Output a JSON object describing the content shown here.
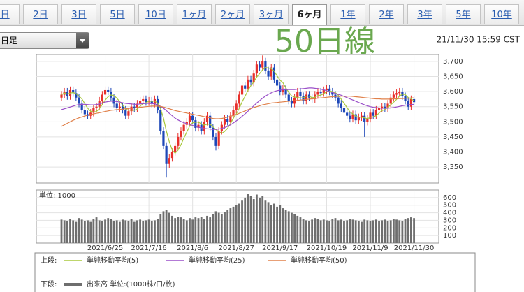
{
  "tabs": [
    "1日",
    "2日",
    "3日",
    "5日",
    "10日",
    "1ヶ月",
    "2ヶ月",
    "3ヶ月",
    "6ヶ月",
    "1年",
    "2年",
    "3年",
    "5年",
    "10年"
  ],
  "active_tab": 8,
  "dropdown": "日足",
  "timestamp": "21/11/30 15:59 CST",
  "annotation": "50日線",
  "chart_data": [
    {
      "type": "candlestick",
      "legend_label": "上段:",
      "categories": [
        null,
        null,
        null,
        null,
        null,
        null,
        null,
        null,
        null,
        null,
        null,
        null,
        null,
        null,
        null,
        "2021/6/25",
        null,
        null,
        null,
        null,
        null,
        null,
        null,
        null,
        null,
        null,
        null,
        null,
        null,
        null,
        "2021/7/16",
        null,
        null,
        null,
        null,
        null,
        null,
        null,
        null,
        null,
        null,
        null,
        null,
        null,
        null,
        "2021/8/6",
        null,
        null,
        null,
        null,
        null,
        null,
        null,
        null,
        null,
        null,
        null,
        null,
        null,
        null,
        "2021/8/27",
        null,
        null,
        null,
        null,
        null,
        null,
        null,
        null,
        null,
        null,
        null,
        null,
        null,
        null,
        "2021/9/17",
        null,
        null,
        null,
        null,
        null,
        null,
        null,
        null,
        null,
        null,
        null,
        null,
        null,
        null,
        null,
        "2021/10/19",
        null,
        null,
        null,
        null,
        null,
        null,
        null,
        null,
        null,
        null,
        null,
        null,
        null,
        null,
        "2021/11/9",
        null,
        null,
        null,
        null,
        null,
        null,
        null,
        null,
        null,
        null,
        null,
        null,
        null,
        null,
        "2021/11/30"
      ],
      "open": [
        3580,
        3590,
        3600,
        3585,
        3605,
        3595,
        3580,
        3560,
        3540,
        3525,
        3520,
        3530,
        3545,
        3550,
        3570,
        3590,
        3605,
        3600,
        3580,
        3560,
        3545,
        3550,
        3540,
        3520,
        3535,
        3550,
        3545,
        3560,
        3570,
        3575,
        3565,
        3570,
        3560,
        3575,
        3540,
        3470,
        3420,
        3360,
        3380,
        3400,
        3420,
        3450,
        3470,
        3490,
        3500,
        3520,
        3505,
        3480,
        3490,
        3470,
        3500,
        3520,
        3480,
        3450,
        3420,
        3470,
        3490,
        3510,
        3500,
        3520,
        3540,
        3560,
        3590,
        3620,
        3610,
        3640,
        3630,
        3660,
        3690,
        3680,
        3700,
        3670,
        3650,
        3680,
        3640,
        3620,
        3600,
        3610,
        3590,
        3570,
        3560,
        3580,
        3600,
        3585,
        3570,
        3590,
        3580,
        3575,
        3590,
        3600,
        3595,
        3605,
        3610,
        3600,
        3590,
        3580,
        3560,
        3545,
        3530,
        3520,
        3510,
        3525,
        3505,
        3515,
        3520,
        3500,
        3510,
        3530,
        3520,
        3540,
        3545,
        3550,
        3545,
        3560,
        3580,
        3590,
        3595,
        3600,
        3585,
        3570,
        3550,
        3575
      ],
      "high": [
        3602,
        3612,
        3612,
        3617,
        3617,
        3607,
        3592,
        3572,
        3552,
        3537,
        3542,
        3557,
        3562,
        3582,
        3602,
        3617,
        3617,
        3612,
        3592,
        3572,
        3562,
        3562,
        3552,
        3547,
        3562,
        3562,
        3572,
        3582,
        3587,
        3587,
        3582,
        3582,
        3587,
        3587,
        3552,
        3482,
        3432,
        3392,
        3412,
        3432,
        3462,
        3482,
        3502,
        3512,
        3532,
        3532,
        3517,
        3502,
        3502,
        3512,
        3532,
        3532,
        3492,
        3462,
        3482,
        3502,
        3522,
        3522,
        3532,
        3552,
        3572,
        3602,
        3632,
        3632,
        3652,
        3652,
        3672,
        3702,
        3702,
        3720,
        3712,
        3682,
        3692,
        3692,
        3652,
        3632,
        3622,
        3622,
        3602,
        3582,
        3592,
        3612,
        3612,
        3597,
        3602,
        3602,
        3592,
        3602,
        3612,
        3612,
        3617,
        3622,
        3622,
        3612,
        3602,
        3592,
        3572,
        3557,
        3542,
        3532,
        3537,
        3537,
        3527,
        3532,
        3532,
        3522,
        3542,
        3542,
        3552,
        3557,
        3562,
        3562,
        3572,
        3592,
        3602,
        3607,
        3612,
        3612,
        3597,
        3582,
        3587,
        3587
      ],
      "low": [
        3568,
        3578,
        3573,
        3573,
        3583,
        3568,
        3548,
        3528,
        3513,
        3508,
        3508,
        3518,
        3533,
        3538,
        3558,
        3578,
        3588,
        3568,
        3548,
        3533,
        3533,
        3528,
        3508,
        3508,
        3523,
        3533,
        3533,
        3548,
        3558,
        3553,
        3553,
        3548,
        3548,
        3528,
        3458,
        3408,
        3315,
        3348,
        3368,
        3388,
        3408,
        3438,
        3458,
        3478,
        3488,
        3493,
        3468,
        3468,
        3458,
        3458,
        3488,
        3468,
        3438,
        3405,
        3408,
        3458,
        3478,
        3488,
        3488,
        3508,
        3528,
        3548,
        3578,
        3598,
        3598,
        3618,
        3618,
        3648,
        3668,
        3668,
        3658,
        3638,
        3638,
        3628,
        3608,
        3588,
        3588,
        3578,
        3558,
        3548,
        3548,
        3568,
        3573,
        3558,
        3558,
        3568,
        3563,
        3563,
        3578,
        3583,
        3583,
        3593,
        3588,
        3578,
        3568,
        3548,
        3533,
        3518,
        3508,
        3498,
        3498,
        3493,
        3493,
        3503,
        3450,
        3488,
        3498,
        3508,
        3508,
        3528,
        3533,
        3533,
        3533,
        3548,
        3568,
        3578,
        3583,
        3573,
        3558,
        3538,
        3538,
        3553
      ],
      "close": [
        3590,
        3600,
        3585,
        3605,
        3595,
        3580,
        3560,
        3540,
        3525,
        3520,
        3530,
        3545,
        3550,
        3570,
        3590,
        3605,
        3600,
        3580,
        3560,
        3545,
        3550,
        3540,
        3520,
        3535,
        3550,
        3545,
        3560,
        3570,
        3575,
        3565,
        3570,
        3560,
        3575,
        3540,
        3470,
        3420,
        3360,
        3380,
        3400,
        3420,
        3450,
        3470,
        3490,
        3500,
        3520,
        3505,
        3480,
        3490,
        3470,
        3500,
        3520,
        3480,
        3450,
        3420,
        3470,
        3490,
        3510,
        3500,
        3520,
        3540,
        3560,
        3590,
        3620,
        3610,
        3640,
        3630,
        3660,
        3690,
        3680,
        3700,
        3670,
        3650,
        3680,
        3640,
        3620,
        3600,
        3610,
        3590,
        3570,
        3560,
        3580,
        3600,
        3585,
        3570,
        3590,
        3580,
        3575,
        3590,
        3600,
        3595,
        3605,
        3610,
        3600,
        3590,
        3580,
        3560,
        3545,
        3530,
        3520,
        3510,
        3525,
        3505,
        3515,
        3520,
        3500,
        3510,
        3530,
        3520,
        3540,
        3545,
        3550,
        3545,
        3560,
        3580,
        3590,
        3595,
        3600,
        3585,
        3570,
        3550,
        3575,
        3565
      ],
      "up_color": "#e8302c",
      "down_color": "#1d47b8",
      "series": [
        {
          "name": "単純移動平均(5)",
          "color": "#a8c83c",
          "values": [
            3590,
            3595,
            3592,
            3595,
            3597,
            3593,
            3585,
            3576,
            3560,
            3545,
            3535,
            3532,
            3534,
            3543,
            3557,
            3572,
            3583,
            3589,
            3587,
            3578,
            3567,
            3555,
            3543,
            3538,
            3539,
            3538,
            3542,
            3552,
            3560,
            3563,
            3568,
            3568,
            3569,
            3562,
            3543,
            3513,
            3469,
            3434,
            3406,
            3396,
            3406,
            3424,
            3446,
            3466,
            3486,
            3497,
            3499,
            3499,
            3493,
            3489,
            3492,
            3492,
            3484,
            3474,
            3468,
            3462,
            3468,
            3478,
            3494,
            3512,
            3526,
            3544,
            3566,
            3584,
            3604,
            3620,
            3632,
            3648,
            3660,
            3672,
            3680,
            3678,
            3676,
            3668,
            3652,
            3638,
            3630,
            3612,
            3598,
            3586,
            3582,
            3580,
            3579,
            3579,
            3585,
            3585,
            3580,
            3581,
            3587,
            3588,
            3593,
            3600,
            3602,
            3600,
            3597,
            3588,
            3575,
            3561,
            3547,
            3533,
            3526,
            3518,
            3515,
            3515,
            3513,
            3510,
            3515,
            3516,
            3520,
            3529,
            3537,
            3540,
            3548,
            3556,
            3565,
            3574,
            3585,
            3592,
            3590,
            3580,
            3576,
            3569
          ]
        },
        {
          "name": "単純移動平均(25)",
          "color": "#9a4fc8",
          "values": [
            3540,
            3543,
            3546,
            3549,
            3552,
            3555,
            3557,
            3558,
            3558,
            3557,
            3556,
            3556,
            3557,
            3559,
            3562,
            3565,
            3567,
            3568,
            3568,
            3567,
            3565,
            3563,
            3561,
            3560,
            3559,
            3558,
            3558,
            3559,
            3560,
            3561,
            3561,
            3560,
            3559,
            3556,
            3551,
            3545,
            3537,
            3528,
            3520,
            3512,
            3506,
            3501,
            3497,
            3494,
            3491,
            3488,
            3485,
            3482,
            3480,
            3478,
            3477,
            3476,
            3475,
            3475,
            3476,
            3478,
            3481,
            3485,
            3490,
            3496,
            3503,
            3510,
            3518,
            3526,
            3535,
            3544,
            3553,
            3562,
            3570,
            3578,
            3585,
            3591,
            3596,
            3600,
            3603,
            3605,
            3606,
            3607,
            3607,
            3607,
            3607,
            3608,
            3609,
            3610,
            3611,
            3612,
            3612,
            3611,
            3610,
            3608,
            3606,
            3603,
            3600,
            3597,
            3594,
            3591,
            3588,
            3584,
            3580,
            3576,
            3572,
            3568,
            3564,
            3560,
            3556,
            3553,
            3550,
            3548,
            3547,
            3546,
            3545,
            3545,
            3545,
            3546,
            3547,
            3549,
            3551,
            3553,
            3555,
            3556,
            3557,
            3558
          ]
        },
        {
          "name": "単純移動平均(50)",
          "color": "#e0804a",
          "values": [
            3485,
            3490,
            3495,
            3500,
            3505,
            3509,
            3513,
            3516,
            3519,
            3522,
            3524,
            3526,
            3528,
            3530,
            3532,
            3534,
            3536,
            3538,
            3539,
            3540,
            3541,
            3542,
            3543,
            3544,
            3545,
            3546,
            3547,
            3548,
            3549,
            3550,
            3551,
            3552,
            3552,
            3552,
            3551,
            3549,
            3546,
            3543,
            3540,
            3537,
            3535,
            3533,
            3531,
            3529,
            3527,
            3525,
            3523,
            3521,
            3519,
            3517,
            3515,
            3513,
            3511,
            3510,
            3510,
            3511,
            3513,
            3515,
            3518,
            3521,
            3524,
            3528,
            3532,
            3536,
            3540,
            3544,
            3547,
            3550,
            3553,
            3556,
            3558,
            3560,
            3562,
            3563,
            3564,
            3565,
            3566,
            3567,
            3568,
            3569,
            3570,
            3571,
            3572,
            3573,
            3574,
            3575,
            3576,
            3577,
            3578,
            3579,
            3580,
            3581,
            3582,
            3583,
            3584,
            3584,
            3585,
            3585,
            3585,
            3585,
            3584,
            3583,
            3582,
            3581,
            3580,
            3579,
            3578,
            3577,
            3576,
            3576,
            3575,
            3575,
            3575,
            3575,
            3576,
            3576,
            3577,
            3577,
            3578,
            3578,
            3579,
            3579
          ]
        }
      ],
      "ylim": [
        3297,
        3723
      ],
      "yticks": [
        {
          "value": 3350,
          "label": "3,350"
        },
        {
          "value": 3400,
          "label": "3,400"
        },
        {
          "value": 3450,
          "label": "3,450"
        },
        {
          "value": 3500,
          "label": "3,500"
        },
        {
          "value": 3550,
          "label": "3,550"
        },
        {
          "value": 3600,
          "label": "3,600"
        },
        {
          "value": 3650,
          "label": "3,650"
        },
        {
          "value": 3700,
          "label": "3,700"
        }
      ],
      "grid": true
    },
    {
      "type": "bar",
      "legend_label": "下段:",
      "unit_label": "単位: 1000",
      "series": [
        {
          "name": "出来高 単位:(1000株/口/枚)",
          "color": "#6e6e6e",
          "values": [
            310,
            300,
            290,
            320,
            300,
            280,
            330,
            310,
            290,
            300,
            280,
            320,
            340,
            300,
            290,
            310,
            330,
            320,
            290,
            300,
            280,
            310,
            300,
            290,
            320,
            280,
            300,
            310,
            290,
            300,
            310,
            290,
            300,
            320,
            380,
            420,
            440,
            400,
            360,
            330,
            350,
            340,
            320,
            300,
            330,
            310,
            340,
            330,
            350,
            320,
            360,
            340,
            380,
            420,
            400,
            380,
            410,
            440,
            460,
            480,
            500,
            520,
            560,
            600,
            650,
            620,
            580,
            640,
            600,
            620,
            560,
            540,
            500,
            520,
            480,
            500,
            460,
            440,
            420,
            400,
            380,
            360,
            340,
            320,
            300,
            290,
            310,
            330,
            320,
            300,
            310,
            300,
            290,
            320,
            330,
            300,
            310,
            290,
            300,
            320,
            310,
            300,
            290,
            280,
            310,
            300,
            290,
            300,
            310,
            290,
            300,
            310,
            290,
            300,
            320,
            310,
            300,
            290,
            320,
            330,
            340,
            330
          ]
        }
      ],
      "ylim": [
        0,
        700
      ],
      "yticks": [
        100,
        200,
        300,
        400,
        500,
        600
      ],
      "grid": true
    }
  ]
}
